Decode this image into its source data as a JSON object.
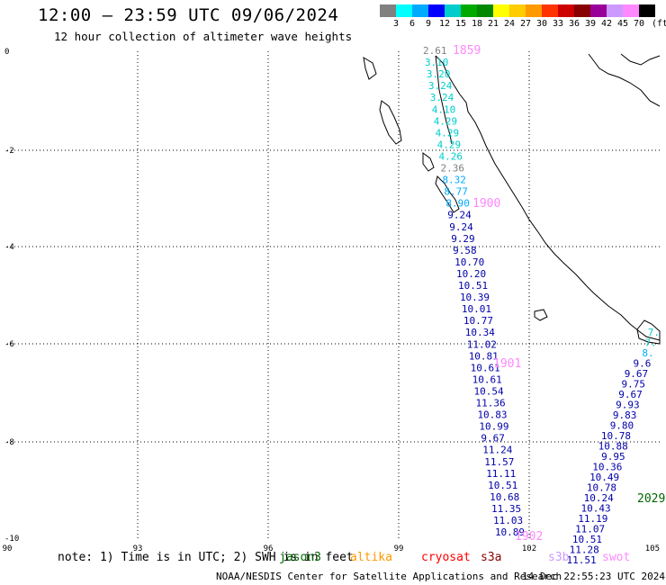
{
  "title": "12:00 – 23:59 UTC 09/06/2024",
  "subtitle": "12 hour collection of altimeter wave heights",
  "legend": {
    "colors": [
      "#808080",
      "#00ffff",
      "#00aaff",
      "#0000ff",
      "#00cccc",
      "#00aa00",
      "#008800",
      "#ffff00",
      "#ffcc00",
      "#ff9900",
      "#ff3300",
      "#cc0000",
      "#880000",
      "#990099",
      "#cc99ff",
      "#ff88ff",
      "#000000"
    ],
    "labels": [
      "3",
      "6",
      "9",
      "12",
      "15",
      "18",
      "21",
      "24",
      "27",
      "30",
      "33",
      "36",
      "39",
      "42",
      "45",
      "70"
    ],
    "unit": "(ft)"
  },
  "note": {
    "prefix": "note: 1) Time is in UTC; 2) SWH is in feet",
    "satellites": [
      {
        "name": "jason3",
        "color": "#006600"
      },
      {
        "name": "altika",
        "color": "#ff9900"
      },
      {
        "name": "cryosat",
        "color": "#ff0000"
      },
      {
        "name": "s3a",
        "color": "#880000"
      },
      {
        "name": "s3b",
        "color": "#cc99ff"
      },
      {
        "name": "swot",
        "color": "#ff88ff"
      }
    ]
  },
  "footer": "NOAA/NESDIS Center for Satellite Applications and Research",
  "footer_date": "14 Dec 22:55:23 UTC 2024",
  "map": {
    "x_ticks": [
      "90",
      "93",
      "96",
      "99",
      "102",
      "105"
    ],
    "y_ticks": [
      "0",
      "-2",
      "-4",
      "-6",
      "-8",
      "-10"
    ],
    "track_times": [
      {
        "label": "1859",
        "color": "#ff88ff"
      },
      {
        "label": "1900",
        "color": "#ff88ff"
      },
      {
        "label": "1901",
        "color": "#ff88ff"
      },
      {
        "label": "1902",
        "color": "#ff88ff"
      },
      {
        "label": "2029",
        "color": "#006600"
      }
    ],
    "track_a": [
      {
        "v": "2.61",
        "c": "#808080"
      },
      {
        "v": "3.10",
        "c": "#00cccc"
      },
      {
        "v": "3.20",
        "c": "#00cccc"
      },
      {
        "v": "3.24",
        "c": "#00cccc"
      },
      {
        "v": "3.24",
        "c": "#00cccc"
      },
      {
        "v": "4.10",
        "c": "#00cccc"
      },
      {
        "v": "4.29",
        "c": "#00cccc"
      },
      {
        "v": "4.29",
        "c": "#00cccc"
      },
      {
        "v": "4.29",
        "c": "#00cccc"
      },
      {
        "v": "4.26",
        "c": "#00cccc"
      },
      {
        "v": "2.36",
        "c": "#808080"
      },
      {
        "v": "8.32",
        "c": "#00aaff"
      },
      {
        "v": "8.77",
        "c": "#00aaff"
      },
      {
        "v": "8.90",
        "c": "#00aaff"
      },
      {
        "v": "9.24",
        "c": "#0000aa"
      },
      {
        "v": "9.24",
        "c": "#0000aa"
      },
      {
        "v": "9.29",
        "c": "#0000aa"
      },
      {
        "v": "9.58",
        "c": "#0000aa"
      },
      {
        "v": "10.70",
        "c": "#0000aa"
      },
      {
        "v": "10.20",
        "c": "#0000aa"
      },
      {
        "v": "10.51",
        "c": "#0000aa"
      },
      {
        "v": "10.39",
        "c": "#0000aa"
      },
      {
        "v": "10.01",
        "c": "#0000aa"
      },
      {
        "v": "10.77",
        "c": "#0000aa"
      },
      {
        "v": "10.34",
        "c": "#0000aa"
      },
      {
        "v": "11.02",
        "c": "#0000aa"
      },
      {
        "v": "10.81",
        "c": "#0000aa"
      },
      {
        "v": "10.61",
        "c": "#0000aa"
      },
      {
        "v": "10.61",
        "c": "#0000aa"
      },
      {
        "v": "10.54",
        "c": "#0000aa"
      },
      {
        "v": "11.36",
        "c": "#0000aa"
      },
      {
        "v": "10.83",
        "c": "#0000aa"
      },
      {
        "v": "10.99",
        "c": "#0000aa"
      },
      {
        "v": "9.67",
        "c": "#0000aa"
      },
      {
        "v": "11.24",
        "c": "#0000aa"
      },
      {
        "v": "11.57",
        "c": "#0000aa"
      },
      {
        "v": "11.11",
        "c": "#0000aa"
      },
      {
        "v": "10.51",
        "c": "#0000aa"
      },
      {
        "v": "10.68",
        "c": "#0000aa"
      },
      {
        "v": "11.35",
        "c": "#0000aa"
      },
      {
        "v": "11.03",
        "c": "#0000aa"
      },
      {
        "v": "10.89",
        "c": "#0000aa"
      }
    ],
    "track_b": [
      {
        "v": "7.",
        "c": "#00cccc"
      },
      {
        "v": "7.",
        "c": "#00cccc"
      },
      {
        "v": "8.",
        "c": "#00aaff"
      },
      {
        "v": "9.6",
        "c": "#0000aa"
      },
      {
        "v": "9.67",
        "c": "#0000aa"
      },
      {
        "v": "9.75",
        "c": "#0000aa"
      },
      {
        "v": "9.67",
        "c": "#0000aa"
      },
      {
        "v": "9.93",
        "c": "#0000aa"
      },
      {
        "v": "9.83",
        "c": "#0000aa"
      },
      {
        "v": "9.80",
        "c": "#0000aa"
      },
      {
        "v": "10.78",
        "c": "#0000aa"
      },
      {
        "v": "10.88",
        "c": "#0000aa"
      },
      {
        "v": "9.95",
        "c": "#0000aa"
      },
      {
        "v": "10.36",
        "c": "#0000aa"
      },
      {
        "v": "10.49",
        "c": "#0000aa"
      },
      {
        "v": "10.78",
        "c": "#0000aa"
      },
      {
        "v": "10.24",
        "c": "#0000aa"
      },
      {
        "v": "10.43",
        "c": "#0000aa"
      },
      {
        "v": "11.19",
        "c": "#0000aa"
      },
      {
        "v": "11.07",
        "c": "#0000aa"
      },
      {
        "v": "10.51",
        "c": "#0000aa"
      },
      {
        "v": "11.28",
        "c": "#0000aa"
      },
      {
        "v": "11.51",
        "c": "#0000aa"
      }
    ]
  }
}
